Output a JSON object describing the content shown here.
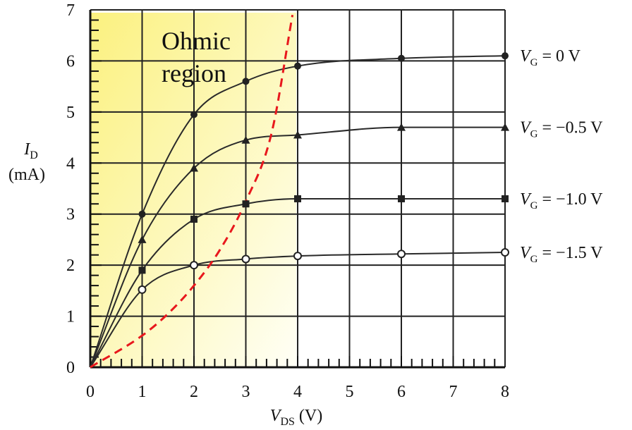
{
  "chart_data": {
    "type": "line",
    "xlabel": {
      "symbol": "V",
      "sub": "DS",
      "unit": " (V)"
    },
    "ylabel": {
      "symbol": "I",
      "sub": "D",
      "unit": "(mA)"
    },
    "xlim": [
      0,
      8
    ],
    "ylim": [
      0,
      7
    ],
    "xticks": [
      "0",
      "1",
      "2",
      "3",
      "4",
      "5",
      "6",
      "7",
      "8"
    ],
    "yticks": [
      "0",
      "1",
      "2",
      "3",
      "4",
      "5",
      "6",
      "7"
    ],
    "grid": true,
    "region_label": [
      "Ohmic",
      "region"
    ],
    "series": [
      {
        "name": "VG = 0 V",
        "label": {
          "symbol": "V",
          "sub": "G",
          "value": " = 0 V"
        },
        "marker": "circle",
        "points": [
          [
            0,
            0
          ],
          [
            1,
            3.0
          ],
          [
            2,
            4.95
          ],
          [
            3,
            5.6
          ],
          [
            4,
            5.9
          ],
          [
            6,
            6.05
          ],
          [
            8,
            6.1
          ]
        ]
      },
      {
        "name": "VG = -0.5 V",
        "label": {
          "symbol": "V",
          "sub": "G",
          "value": " = −0.5 V"
        },
        "marker": "triangle",
        "points": [
          [
            0,
            0
          ],
          [
            1,
            2.5
          ],
          [
            2,
            3.9
          ],
          [
            3,
            4.45
          ],
          [
            4,
            4.55
          ],
          [
            6,
            4.7
          ],
          [
            8,
            4.7
          ]
        ]
      },
      {
        "name": "VG = -1.0 V",
        "label": {
          "symbol": "V",
          "sub": "G",
          "value": " = −1.0 V"
        },
        "marker": "square",
        "points": [
          [
            0,
            0
          ],
          [
            1,
            1.9
          ],
          [
            2,
            2.9
          ],
          [
            3,
            3.2
          ],
          [
            4,
            3.3
          ],
          [
            6,
            3.3
          ],
          [
            8,
            3.3
          ]
        ]
      },
      {
        "name": "VG = -1.5 V",
        "label": {
          "symbol": "V",
          "sub": "G",
          "value": " = −1.5 V"
        },
        "marker": "open-circle",
        "points": [
          [
            0,
            0
          ],
          [
            1,
            1.52
          ],
          [
            2,
            2.0
          ],
          [
            3,
            2.12
          ],
          [
            4,
            2.18
          ],
          [
            6,
            2.22
          ],
          [
            8,
            2.25
          ]
        ]
      }
    ],
    "boundary": {
      "style": "dashed",
      "color": "#e8181d",
      "points": [
        [
          0,
          0
        ],
        [
          1,
          0.62
        ],
        [
          1.5,
          1.05
        ],
        [
          2,
          1.6
        ],
        [
          2.5,
          2.3
        ],
        [
          3,
          3.25
        ],
        [
          3.5,
          4.6
        ],
        [
          3.9,
          6.9
        ]
      ]
    },
    "colors": {
      "curve": "#2a2a2a",
      "grid": "#222222",
      "shade_start": "#fbf17f",
      "shade_end": "#fffff6"
    }
  }
}
